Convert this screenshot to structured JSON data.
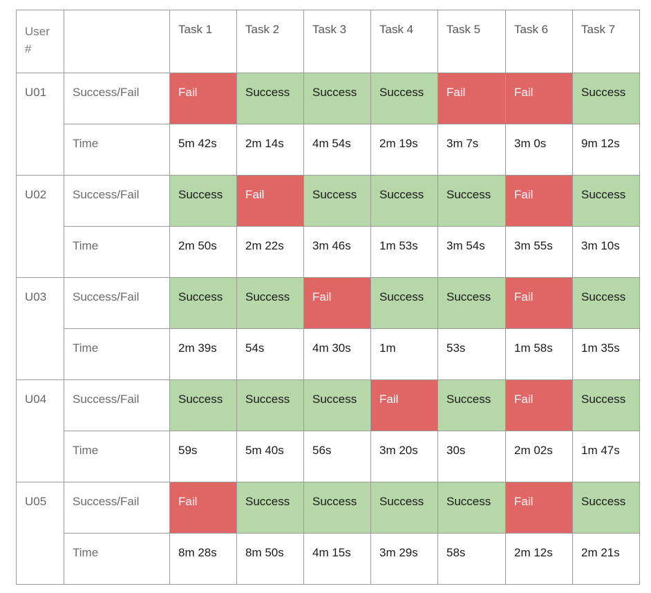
{
  "header": {
    "user_label": "User\n#",
    "tasks": [
      "Task 1",
      "Task 2",
      "Task 3",
      "Task 4",
      "Task 5",
      "Task 6",
      "Task 7"
    ]
  },
  "row_labels": {
    "status": "Success/Fail",
    "time": "Time"
  },
  "colors": {
    "success": "#b6d7a8",
    "fail": "#e06666"
  },
  "users": [
    {
      "id": "U01",
      "status": [
        "Fail",
        "Success",
        "Success",
        "Success",
        "Fail",
        "Fail",
        "Success"
      ],
      "time": [
        "5m 42s",
        "2m 14s",
        "4m 54s",
        "2m 19s",
        "3m 7s",
        "3m 0s",
        "9m 12s"
      ]
    },
    {
      "id": "U02",
      "status": [
        "Success",
        "Fail",
        "Success",
        "Success",
        "Success",
        "Fail",
        "Success"
      ],
      "time": [
        "2m 50s",
        "2m 22s",
        "3m 46s",
        "1m 53s",
        "3m 54s",
        "3m 55s",
        "3m 10s"
      ]
    },
    {
      "id": "U03",
      "status": [
        "Success",
        "Success",
        "Fail",
        "Success",
        "Success",
        "Fail",
        "Success"
      ],
      "time": [
        "2m 39s",
        "54s",
        "4m 30s",
        "1m",
        "53s",
        "1m 58s",
        "1m 35s"
      ]
    },
    {
      "id": "U04",
      "status": [
        "Success",
        "Success",
        "Success",
        "Fail",
        "Success",
        "Fail",
        "Success"
      ],
      "time": [
        "59s",
        "5m 40s",
        "56s",
        "3m 20s",
        "30s",
        "2m 02s",
        "1m 47s"
      ]
    },
    {
      "id": "U05",
      "status": [
        "Fail",
        "Success",
        "Success",
        "Success",
        "Success",
        "Fail",
        "Success"
      ],
      "time": [
        "8m 28s",
        "8m 50s",
        "4m 15s",
        "3m 29s",
        "58s",
        "2m 12s",
        "2m 21s"
      ]
    }
  ]
}
